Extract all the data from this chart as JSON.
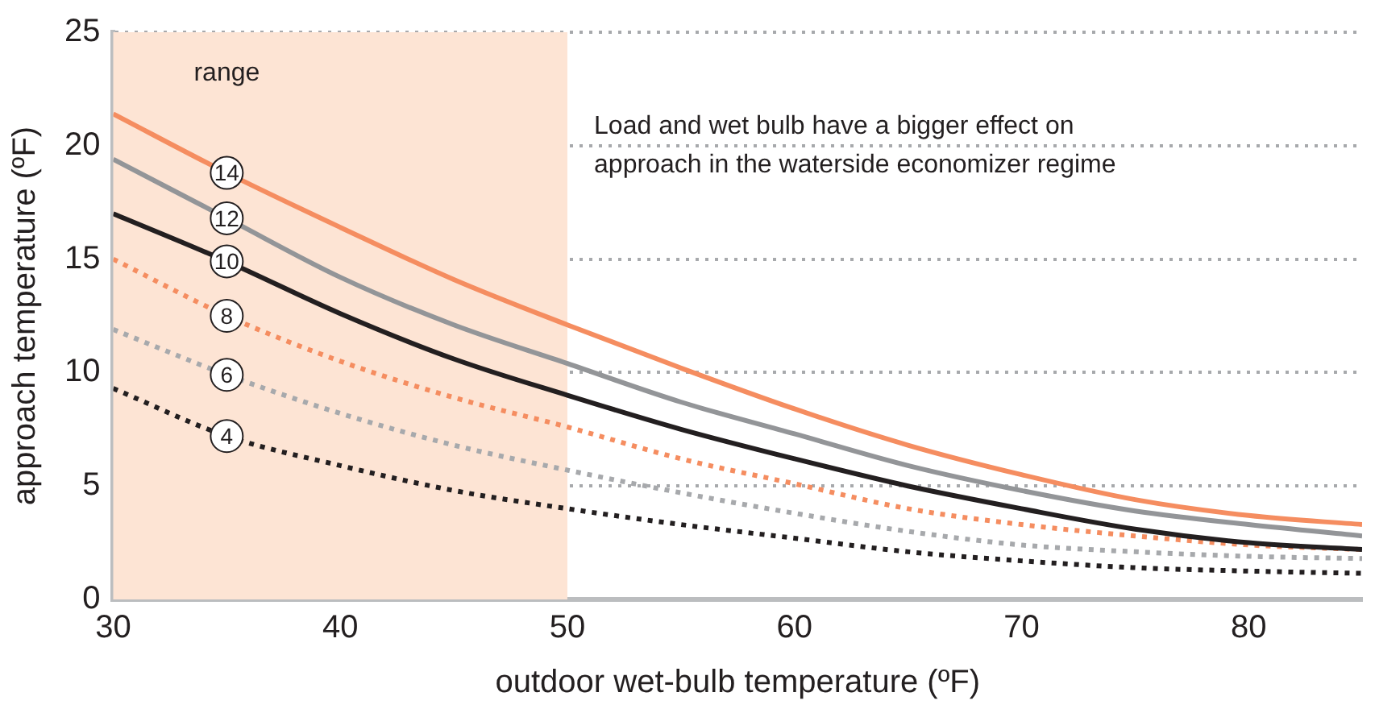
{
  "chart_data": {
    "type": "line",
    "xlabel": "outdoor wet-bulb temperature (ºF)",
    "ylabel": "approach temperature (ºF)",
    "legend_title": "range",
    "x": [
      30,
      35,
      40,
      45,
      50,
      55,
      60,
      65,
      70,
      75,
      80,
      85
    ],
    "series": [
      {
        "name": "14",
        "color": "#f58d60",
        "line_style": "solid",
        "values": [
          21.4,
          18.8,
          16.4,
          14.1,
          12.1,
          10.2,
          8.4,
          6.8,
          5.5,
          4.4,
          3.7,
          3.3
        ]
      },
      {
        "name": "12",
        "color": "#939598",
        "line_style": "solid",
        "values": [
          19.4,
          16.8,
          14.2,
          12.1,
          10.4,
          8.7,
          7.3,
          5.9,
          4.8,
          3.9,
          3.3,
          2.8
        ]
      },
      {
        "name": "10",
        "color": "#231f20",
        "line_style": "solid",
        "values": [
          17.0,
          14.9,
          12.6,
          10.6,
          9.0,
          7.5,
          6.2,
          5.0,
          4.0,
          3.1,
          2.5,
          2.2
        ]
      },
      {
        "name": "8",
        "color": "#f58d60",
        "line_style": "dotted",
        "values": [
          15.0,
          12.5,
          10.5,
          8.9,
          7.6,
          6.2,
          5.1,
          4.0,
          3.3,
          2.8,
          2.4,
          2.2
        ]
      },
      {
        "name": "6",
        "color": "#a7a9ac",
        "line_style": "dotted",
        "values": [
          11.9,
          9.9,
          8.2,
          6.8,
          5.7,
          4.7,
          3.8,
          3.0,
          2.4,
          2.1,
          1.9,
          1.8
        ]
      },
      {
        "name": "4",
        "color": "#231f20",
        "line_style": "dotted",
        "values": [
          9.3,
          7.2,
          5.9,
          4.8,
          4.0,
          3.3,
          2.7,
          2.1,
          1.7,
          1.4,
          1.25,
          1.15
        ]
      }
    ],
    "bands": [
      {
        "axis": "x",
        "from": 30,
        "to": 50,
        "color": "#fde4d4"
      }
    ],
    "annotations": [
      "Load and wet bulb have a bigger effect on approach in the waterside economizer regime"
    ],
    "xlim": [
      30,
      85
    ],
    "xticks": [
      30,
      40,
      50,
      60,
      70,
      80
    ],
    "ylim": [
      0,
      25
    ],
    "yticks": [
      0,
      5,
      10,
      15,
      20,
      25
    ],
    "grid": "y",
    "legend": false,
    "marker": "none"
  }
}
